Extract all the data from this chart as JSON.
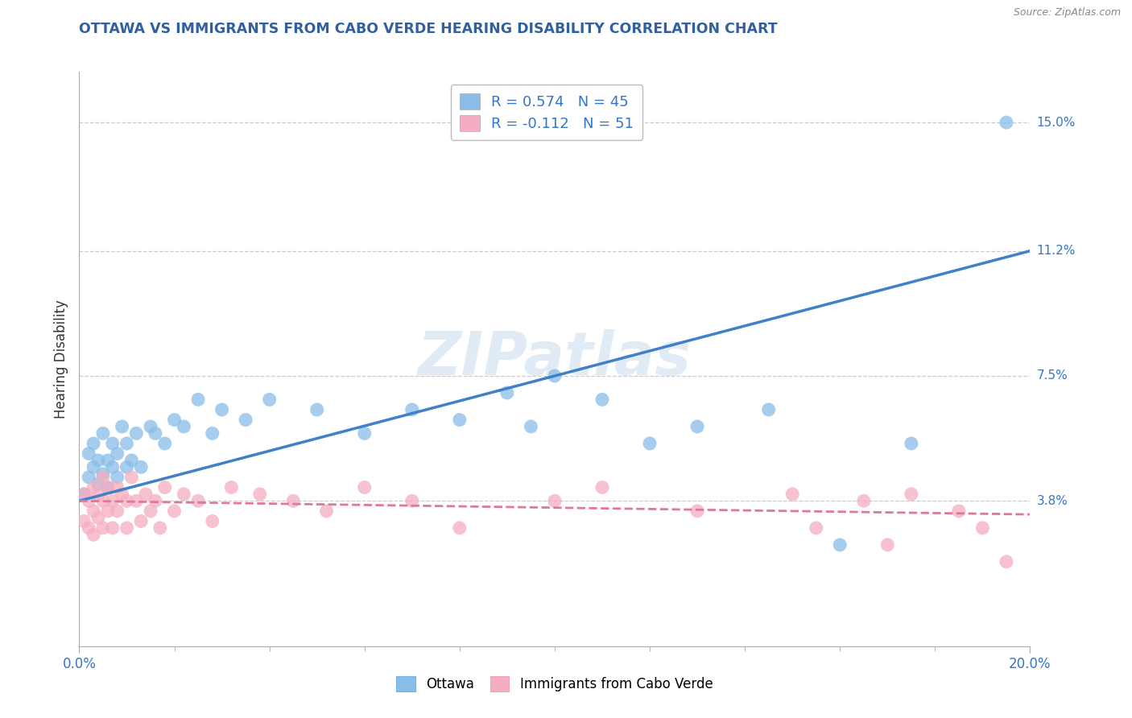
{
  "title": "OTTAWA VS IMMIGRANTS FROM CABO VERDE HEARING DISABILITY CORRELATION CHART",
  "source": "Source: ZipAtlas.com",
  "ylabel": "Hearing Disability",
  "xlim": [
    0.0,
    0.2
  ],
  "ylim": [
    -0.005,
    0.165
  ],
  "ytick_labels_right": [
    "3.8%",
    "7.5%",
    "11.2%",
    "15.0%"
  ],
  "ytick_values_right": [
    0.038,
    0.075,
    0.112,
    0.15
  ],
  "ottawa_R": 0.574,
  "ottawa_N": 45,
  "cabo_verde_R": -0.112,
  "cabo_verde_N": 51,
  "ottawa_color": "#89bde8",
  "cabo_verde_color": "#f5aec0",
  "ottawa_line_color": "#4080c8",
  "cabo_verde_line_color": "#e07898",
  "legend_label_ottawa": "Ottawa",
  "legend_label_cabo": "Immigrants from Cabo Verde",
  "watermark": "ZIPatlas",
  "ottawa_line_start_y": 0.038,
  "ottawa_line_end_y": 0.112,
  "cabo_line_start_y": 0.038,
  "cabo_line_end_y": 0.034,
  "ottawa_x": [
    0.001,
    0.002,
    0.002,
    0.003,
    0.003,
    0.004,
    0.004,
    0.005,
    0.005,
    0.006,
    0.006,
    0.007,
    0.007,
    0.008,
    0.008,
    0.009,
    0.01,
    0.01,
    0.011,
    0.012,
    0.013,
    0.015,
    0.016,
    0.018,
    0.02,
    0.022,
    0.025,
    0.028,
    0.03,
    0.035,
    0.04,
    0.05,
    0.06,
    0.07,
    0.08,
    0.09,
    0.095,
    0.1,
    0.11,
    0.12,
    0.13,
    0.145,
    0.16,
    0.175,
    0.195
  ],
  "ottawa_y": [
    0.04,
    0.045,
    0.052,
    0.048,
    0.055,
    0.043,
    0.05,
    0.046,
    0.058,
    0.042,
    0.05,
    0.048,
    0.055,
    0.045,
    0.052,
    0.06,
    0.048,
    0.055,
    0.05,
    0.058,
    0.048,
    0.06,
    0.058,
    0.055,
    0.062,
    0.06,
    0.068,
    0.058,
    0.065,
    0.062,
    0.068,
    0.065,
    0.058,
    0.065,
    0.062,
    0.07,
    0.06,
    0.075,
    0.068,
    0.055,
    0.06,
    0.065,
    0.025,
    0.055,
    0.15
  ],
  "cabo_verde_x": [
    0.001,
    0.001,
    0.002,
    0.002,
    0.003,
    0.003,
    0.003,
    0.004,
    0.004,
    0.005,
    0.005,
    0.005,
    0.006,
    0.006,
    0.007,
    0.007,
    0.008,
    0.008,
    0.009,
    0.01,
    0.01,
    0.011,
    0.012,
    0.013,
    0.014,
    0.015,
    0.016,
    0.017,
    0.018,
    0.02,
    0.022,
    0.025,
    0.028,
    0.032,
    0.038,
    0.045,
    0.052,
    0.06,
    0.07,
    0.08,
    0.1,
    0.11,
    0.13,
    0.15,
    0.155,
    0.165,
    0.17,
    0.175,
    0.185,
    0.19,
    0.195
  ],
  "cabo_verde_y": [
    0.04,
    0.032,
    0.038,
    0.03,
    0.042,
    0.035,
    0.028,
    0.04,
    0.033,
    0.045,
    0.038,
    0.03,
    0.042,
    0.035,
    0.038,
    0.03,
    0.042,
    0.035,
    0.04,
    0.038,
    0.03,
    0.045,
    0.038,
    0.032,
    0.04,
    0.035,
    0.038,
    0.03,
    0.042,
    0.035,
    0.04,
    0.038,
    0.032,
    0.042,
    0.04,
    0.038,
    0.035,
    0.042,
    0.038,
    0.03,
    0.038,
    0.042,
    0.035,
    0.04,
    0.03,
    0.038,
    0.025,
    0.04,
    0.035,
    0.03,
    0.02
  ],
  "background_color": "#ffffff",
  "grid_color": "#cccccc",
  "title_color": "#3060a0",
  "legend_text_color": "#3575c8",
  "tick_color": "#3575c8"
}
